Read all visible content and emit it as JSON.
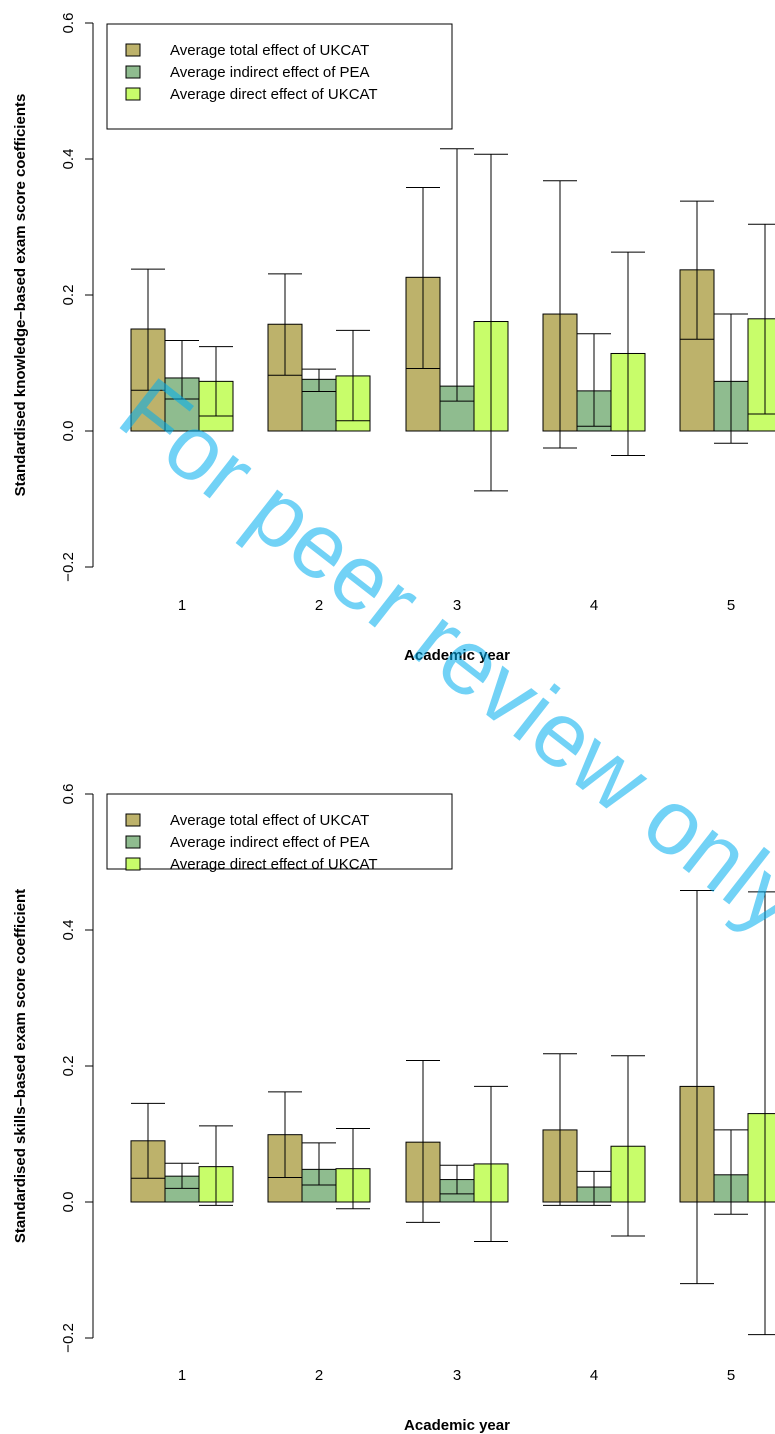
{
  "watermark": "For peer review only",
  "colors": {
    "total": "#bdb26b",
    "indirect": "#8fbc8f",
    "direct": "#c8fd6a",
    "watermark": "#00aeef"
  },
  "chart_data": [
    {
      "type": "bar",
      "xlabel": "Academic year",
      "ylabel": "Standardised knowledge–based exam score coefficients",
      "ylim": [
        -0.2,
        0.6
      ],
      "yticks": [
        "−0.2",
        "0.0",
        "0.2",
        "0.4",
        "0.6"
      ],
      "yticks_values": [
        -0.2,
        0.0,
        0.2,
        0.4,
        0.6
      ],
      "categories": [
        "1",
        "2",
        "3",
        "4",
        "5"
      ],
      "legend_position": "top-left",
      "grid": false,
      "series": [
        {
          "name": "Average total effect of UKCAT",
          "color": "#bdb26b",
          "values": [
            0.15,
            0.157,
            0.226,
            0.172,
            0.237
          ],
          "ci_low": [
            0.06,
            0.082,
            0.092,
            -0.025,
            0.135
          ],
          "ci_high": [
            0.238,
            0.231,
            0.358,
            0.368,
            0.338
          ]
        },
        {
          "name": "Average indirect effect of PEA",
          "color": "#8fbc8f",
          "values": [
            0.078,
            0.076,
            0.066,
            0.059,
            0.073
          ],
          "ci_low": [
            0.047,
            0.058,
            0.044,
            0.007,
            -0.018
          ],
          "ci_high": [
            0.133,
            0.091,
            0.415,
            0.143,
            0.172
          ]
        },
        {
          "name": "Average direct effect of UKCAT",
          "color": "#c8fd6a",
          "values": [
            0.073,
            0.081,
            0.161,
            0.114,
            0.165
          ],
          "ci_low": [
            0.022,
            0.015,
            -0.088,
            -0.036,
            0.025
          ],
          "ci_high": [
            0.124,
            0.148,
            0.407,
            0.263,
            0.304
          ]
        }
      ]
    },
    {
      "type": "bar",
      "xlabel": "Academic year",
      "ylabel": "Standardised skills–based exam score coefficient",
      "ylim": [
        -0.2,
        0.6
      ],
      "yticks": [
        "−0.2",
        "0.0",
        "0.2",
        "0.4",
        "0.6"
      ],
      "yticks_values": [
        -0.2,
        0.0,
        0.2,
        0.4,
        0.6
      ],
      "categories": [
        "1",
        "2",
        "3",
        "4",
        "5"
      ],
      "legend_position": "top-left",
      "grid": false,
      "series": [
        {
          "name": "Average total effect of UKCAT",
          "color": "#bdb26b",
          "values": [
            0.09,
            0.099,
            0.088,
            0.106,
            0.17
          ],
          "ci_low": [
            0.035,
            0.036,
            -0.03,
            -0.005,
            -0.12
          ],
          "ci_high": [
            0.145,
            0.162,
            0.208,
            0.218,
            0.458
          ]
        },
        {
          "name": "Average indirect effect of PEA",
          "color": "#8fbc8f",
          "values": [
            0.038,
            0.048,
            0.033,
            0.022,
            0.04
          ],
          "ci_low": [
            0.02,
            0.025,
            0.012,
            -0.005,
            -0.018
          ],
          "ci_high": [
            0.057,
            0.087,
            0.054,
            0.045,
            0.106
          ]
        },
        {
          "name": "Average direct effect of UKCAT",
          "color": "#c8fd6a",
          "values": [
            0.052,
            0.049,
            0.056,
            0.082,
            0.13
          ],
          "ci_low": [
            -0.005,
            -0.01,
            -0.058,
            -0.05,
            -0.195
          ],
          "ci_high": [
            0.112,
            0.108,
            0.17,
            0.215,
            0.456
          ]
        }
      ]
    }
  ]
}
